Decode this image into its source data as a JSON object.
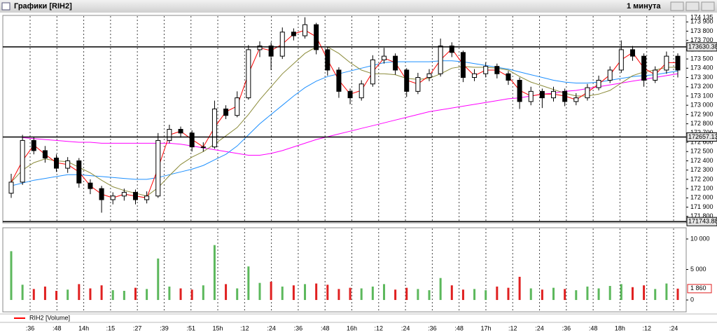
{
  "chart_data": {
    "type": "candlestick",
    "title": "Графики [RIH2]",
    "timeframe": "1 минута",
    "time_labels": [
      ":36",
      ":48",
      "14h",
      ":15",
      ":27",
      ":39",
      ":51",
      "15h",
      ":12",
      ":24",
      ":36",
      ":48",
      "16h",
      ":12",
      ":24",
      ":36",
      ":48",
      "17h",
      ":12",
      ":24",
      ":36",
      ":48",
      "18h",
      ":12",
      ":24"
    ],
    "open": [
      172050,
      172170,
      172620,
      172510,
      172430,
      172320,
      172400,
      172160,
      172100,
      171980,
      172020,
      172060,
      171980,
      172020,
      172620,
      172740,
      172700,
      172550,
      172550,
      172960,
      172890,
      173080,
      173600,
      173640,
      173530,
      173790,
      173750,
      173870,
      173600,
      173380,
      173150,
      173080,
      173230,
      173490,
      173530,
      173380,
      173150,
      173300,
      173340,
      173640,
      173570,
      173300,
      173340,
      173420,
      173340,
      173270,
      173040,
      173150,
      173080,
      173150,
      173040,
      173080,
      173190,
      173270,
      173380,
      173600,
      173530,
      173270,
      173380,
      173530
    ],
    "high": [
      172260,
      172680,
      172660,
      172560,
      172470,
      172440,
      172430,
      172200,
      172130,
      172060,
      172100,
      172090,
      172070,
      172700,
      172790,
      172770,
      172730,
      172600,
      173050,
      173000,
      173150,
      173650,
      173690,
      173680,
      173840,
      173830,
      173950,
      173890,
      173630,
      173410,
      173180,
      173270,
      173540,
      173620,
      173560,
      173400,
      173350,
      173390,
      173720,
      173680,
      173590,
      173390,
      173460,
      173450,
      173370,
      173300,
      173200,
      173180,
      173200,
      173180,
      173130,
      173230,
      173320,
      173420,
      173700,
      173640,
      173560,
      173420,
      173580,
      173560
    ],
    "low": [
      172000,
      172140,
      172470,
      172380,
      172280,
      172270,
      172110,
      172040,
      171840,
      171930,
      171970,
      171930,
      171940,
      172000,
      172590,
      172650,
      172500,
      172500,
      172530,
      172850,
      172870,
      173060,
      173520,
      173380,
      173500,
      173700,
      173720,
      173550,
      173320,
      173080,
      173010,
      173050,
      173200,
      173450,
      173330,
      173090,
      173120,
      173260,
      173310,
      173520,
      173250,
      173260,
      173300,
      173290,
      173220,
      172960,
      173000,
      172970,
      173040,
      172990,
      173000,
      173050,
      173160,
      173240,
      173350,
      173480,
      173200,
      173240,
      173340,
      173300
    ],
    "close": [
      172170,
      172620,
      172510,
      172430,
      172320,
      172400,
      172160,
      172100,
      171980,
      172020,
      172060,
      171980,
      172020,
      172620,
      172740,
      172700,
      172550,
      172550,
      172960,
      172890,
      173080,
      173600,
      173640,
      173530,
      173790,
      173750,
      173870,
      173600,
      173380,
      173150,
      173080,
      173230,
      173490,
      173530,
      173380,
      173150,
      173300,
      173340,
      173640,
      173570,
      173300,
      173340,
      173420,
      173340,
      173270,
      173040,
      173150,
      173080,
      173150,
      173040,
      173080,
      173190,
      173270,
      173380,
      173600,
      173530,
      173270,
      173380,
      173530,
      173380
    ],
    "up_color": "#ffffff",
    "down_color": "#000000",
    "ylim": [
      171730,
      173970
    ],
    "axis_top_label": "174 135",
    "yticks": [
      {
        "value": 171800,
        "label": "171 800"
      },
      {
        "value": 171900,
        "label": "171 900"
      },
      {
        "value": 172000,
        "label": "172 000"
      },
      {
        "value": 172100,
        "label": "172 100"
      },
      {
        "value": 172200,
        "label": "172 200"
      },
      {
        "value": 172300,
        "label": "172 300"
      },
      {
        "value": 172400,
        "label": "172 400"
      },
      {
        "value": 172500,
        "label": "172 500"
      },
      {
        "value": 172600,
        "label": "172 600"
      },
      {
        "value": 172700,
        "label": "172 700"
      },
      {
        "value": 172800,
        "label": "172 800"
      },
      {
        "value": 172900,
        "label": "172 900"
      },
      {
        "value": 173000,
        "label": "173 000"
      },
      {
        "value": 173100,
        "label": "173 100"
      },
      {
        "value": 173200,
        "label": "173 200"
      },
      {
        "value": 173300,
        "label": "173 300"
      },
      {
        "value": 173400,
        "label": "173 400"
      },
      {
        "value": 173500,
        "label": "173 500"
      },
      {
        "value": 173600,
        "label": "173 600"
      },
      {
        "value": 173700,
        "label": "173 700"
      },
      {
        "value": 173800,
        "label": "173 800"
      },
      {
        "value": 173900,
        "label": "173 900"
      }
    ],
    "hlines": [
      {
        "value": 173630.38,
        "label": "173630.38"
      },
      {
        "value": 172657.13,
        "label": "172657.13"
      },
      {
        "value": 171743.88,
        "label": "171743.88"
      }
    ],
    "series": [
      {
        "color": "#ff00ff",
        "values": [
          null,
          172650,
          172640,
          172630,
          172620,
          172610,
          172600,
          172600,
          172590,
          172590,
          172590,
          172590,
          172590,
          172590,
          172590,
          172580,
          172560,
          172540,
          172520,
          172500,
          172480,
          172460,
          172460,
          172480,
          172510,
          172550,
          172590,
          172630,
          172660,
          172690,
          172720,
          172750,
          172780,
          172810,
          172840,
          172870,
          172900,
          172930,
          172950,
          172970,
          172990,
          173010,
          173030,
          173050,
          173070,
          173080,
          173100,
          173120,
          173130,
          173150,
          173160,
          173180,
          173200,
          173220,
          173240,
          173260,
          173280,
          173300,
          173320,
          173340
        ]
      },
      {
        "color": "#1e90ff",
        "values": [
          172130,
          172160,
          172190,
          172210,
          172230,
          172250,
          172250,
          172240,
          172230,
          172220,
          172210,
          172200,
          172200,
          172220,
          172250,
          172280,
          172310,
          172350,
          172410,
          172470,
          172560,
          172680,
          172800,
          172900,
          173000,
          173100,
          173190,
          173260,
          173310,
          173340,
          173370,
          173400,
          173430,
          173460,
          173470,
          173470,
          173470,
          173470,
          173480,
          173480,
          173470,
          173450,
          173430,
          173410,
          173390,
          173360,
          173330,
          173300,
          173270,
          173250,
          173240,
          173240,
          173250,
          173270,
          173290,
          173310,
          173320,
          173330,
          173350,
          173370
        ]
      },
      {
        "color": "#8b8b3a",
        "values": [
          172170,
          172300,
          172380,
          172420,
          172400,
          172390,
          172330,
          172270,
          172190,
          172120,
          172080,
          172050,
          172020,
          172110,
          172240,
          172360,
          172440,
          172500,
          172580,
          172670,
          172760,
          172900,
          173060,
          173200,
          173340,
          173450,
          173560,
          173630,
          173630,
          173560,
          173460,
          173380,
          173340,
          173340,
          173330,
          173290,
          173280,
          173290,
          173340,
          173400,
          173420,
          173410,
          173410,
          173400,
          173380,
          173310,
          173250,
          173210,
          173170,
          173130,
          173100,
          173100,
          173120,
          173160,
          173240,
          173320,
          173360,
          173380,
          173410,
          173410
        ]
      },
      {
        "color": "#ff0000",
        "values": [
          172170,
          172400,
          172570,
          172470,
          172380,
          172360,
          172280,
          172130,
          172040,
          172000,
          172040,
          172020,
          172000,
          172320,
          172680,
          172720,
          172630,
          172550,
          172760,
          172930,
          172990,
          173340,
          173620,
          173590,
          173660,
          173770,
          173810,
          173740,
          173490,
          173270,
          173120,
          173160,
          173360,
          173510,
          173460,
          173270,
          173230,
          173320,
          173490,
          173610,
          173440,
          173320,
          173380,
          173380,
          173310,
          173160,
          173100,
          173120,
          173120,
          173100,
          173060,
          173140,
          173230,
          173330,
          173490,
          173570,
          173400,
          173330,
          173460,
          173460
        ]
      }
    ],
    "volume": {
      "type": "bar",
      "name": "RIH2 [Volume]",
      "legend_color": "#ff0000",
      "up_color": "#5cb85c",
      "down_color": "#e02020",
      "values": [
        8000,
        2500,
        1800,
        2200,
        1500,
        1700,
        2600,
        1900,
        2400,
        1600,
        1500,
        2000,
        1800,
        6800,
        2200,
        1900,
        1700,
        2400,
        9000,
        2600,
        1900,
        5500,
        2800,
        3000,
        2200,
        2400,
        2600,
        2700,
        2500,
        1800,
        2000,
        1900,
        2200,
        2600,
        1700,
        2000,
        1800,
        1600,
        3600,
        2400,
        1700,
        1800,
        1600,
        2200,
        2000,
        3800,
        1900,
        1700,
        2000,
        1800,
        1600,
        2200,
        1900,
        2300,
        2600,
        2100,
        2400,
        1800,
        2700,
        1860
      ],
      "ylim": [
        -1950,
        11840
      ],
      "yticks": [
        0,
        {
          "value": 5000,
          "label": "5 000"
        },
        {
          "value": 10000,
          "label": "10 000"
        }
      ],
      "last_label": {
        "value": 1860,
        "label": "1 860"
      }
    }
  }
}
